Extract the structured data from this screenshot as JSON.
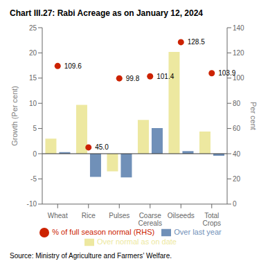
{
  "chart_data": {
    "type": "bar",
    "title": "Chart III.27: Rabi Acreage as on January 12, 2024",
    "categories": [
      "Wheat",
      "Rice",
      "Pulses",
      "Coarse\nCereals",
      "Oilseeds",
      "Total\nCrops"
    ],
    "series": [
      {
        "name": "Over normal as on date",
        "color": "#ede8a0",
        "values": [
          3.0,
          9.7,
          -3.5,
          6.7,
          20.2,
          4.4
        ]
      },
      {
        "name": "Over last year",
        "color": "#7090b8",
        "values": [
          0.3,
          -4.6,
          -4.7,
          5.1,
          0.5,
          -0.4
        ]
      },
      {
        "name": "% of full season normal (RHS)",
        "type": "scatter",
        "axis": "y2",
        "color": "#cc2200",
        "values": [
          109.6,
          45.0,
          99.8,
          101.4,
          128.5,
          103.9
        ],
        "value_labels": [
          "109.6",
          "45.0",
          "99.8",
          "101.4",
          "128.5",
          "103.9"
        ],
        "data_labels": true
      }
    ],
    "ylim": [
      -10,
      25
    ],
    "yticks": [
      -10,
      -5,
      0,
      5,
      10,
      15,
      20,
      25
    ],
    "y2lim": [
      0,
      140
    ],
    "y2ticks": [
      0,
      20,
      40,
      60,
      80,
      100,
      120,
      140
    ],
    "ylabel": "Growth (Per cent)",
    "y2label": "Per cent",
    "grid": false,
    "legend": "bottom",
    "annotations": [
      "Source: Ministry of Agriculture and Farmers’ Welfare."
    ]
  }
}
